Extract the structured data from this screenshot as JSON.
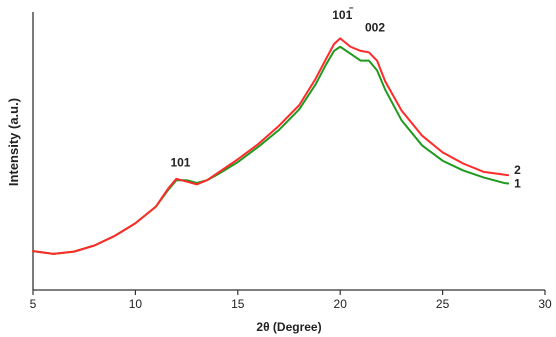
{
  "chart_data": {
    "type": "line",
    "xlabel": "2θ (Degree)",
    "ylabel": "Intensity (a.u.)",
    "xlim": [
      5,
      30
    ],
    "ylim": [
      0,
      100
    ],
    "x_ticks": [
      "5",
      "10",
      "15",
      "20",
      "25",
      "30"
    ],
    "y_ticks": [],
    "grid": false,
    "colors": {
      "1": "#1e9a1e",
      "2": "#ff2a2a"
    },
    "series": [
      {
        "name": "1",
        "color": "#1e9a1e",
        "points": [
          [
            5.0,
            14.0
          ],
          [
            6.0,
            13.0
          ],
          [
            7.0,
            13.8
          ],
          [
            8.0,
            16.0
          ],
          [
            9.0,
            19.5
          ],
          [
            10.0,
            24.0
          ],
          [
            11.0,
            30.0
          ],
          [
            11.6,
            36.0
          ],
          [
            12.0,
            39.5
          ],
          [
            12.5,
            39.5
          ],
          [
            13.0,
            38.5
          ],
          [
            13.5,
            39.5
          ],
          [
            14.0,
            41.5
          ],
          [
            15.0,
            46.0
          ],
          [
            16.0,
            51.5
          ],
          [
            17.0,
            57.5
          ],
          [
            18.0,
            65.0
          ],
          [
            18.8,
            74.0
          ],
          [
            19.3,
            81.0
          ],
          [
            19.7,
            86.0
          ],
          [
            20.0,
            87.5
          ],
          [
            20.5,
            85.0
          ],
          [
            21.0,
            82.5
          ],
          [
            21.4,
            82.5
          ],
          [
            21.8,
            79.0
          ],
          [
            22.2,
            72.0
          ],
          [
            23.0,
            61.0
          ],
          [
            24.0,
            52.0
          ],
          [
            25.0,
            46.5
          ],
          [
            26.0,
            43.0
          ],
          [
            27.0,
            40.5
          ],
          [
            28.0,
            38.5
          ],
          [
            28.2,
            38.3
          ]
        ]
      },
      {
        "name": "2",
        "color": "#ff2a2a",
        "points": [
          [
            5.0,
            14.0
          ],
          [
            6.0,
            13.0
          ],
          [
            7.0,
            13.8
          ],
          [
            8.0,
            16.0
          ],
          [
            9.0,
            19.5
          ],
          [
            10.0,
            24.0
          ],
          [
            11.0,
            30.0
          ],
          [
            11.6,
            36.5
          ],
          [
            12.0,
            40.0
          ],
          [
            12.5,
            39.0
          ],
          [
            13.0,
            38.0
          ],
          [
            13.5,
            39.5
          ],
          [
            14.0,
            42.0
          ],
          [
            15.0,
            47.0
          ],
          [
            16.0,
            52.5
          ],
          [
            17.0,
            59.0
          ],
          [
            18.0,
            66.5
          ],
          [
            18.8,
            76.0
          ],
          [
            19.3,
            83.0
          ],
          [
            19.7,
            88.5
          ],
          [
            20.0,
            90.5
          ],
          [
            20.5,
            87.5
          ],
          [
            21.0,
            86.0
          ],
          [
            21.4,
            85.5
          ],
          [
            21.8,
            82.5
          ],
          [
            22.2,
            75.0
          ],
          [
            23.0,
            64.5
          ],
          [
            24.0,
            55.5
          ],
          [
            25.0,
            49.5
          ],
          [
            26.0,
            45.5
          ],
          [
            27.0,
            42.5
          ],
          [
            28.0,
            41.5
          ],
          [
            28.2,
            41.3
          ]
        ]
      }
    ],
    "annotations": [
      {
        "text": "101",
        "x": 12.2,
        "y": 44.5
      },
      {
        "text": "101",
        "x": 20.1,
        "y": 97.5,
        "overbar_on_last_char": true
      },
      {
        "text": "002",
        "x": 21.7,
        "y": 93.0
      }
    ],
    "series_end_labels": [
      "2",
      "1"
    ]
  }
}
